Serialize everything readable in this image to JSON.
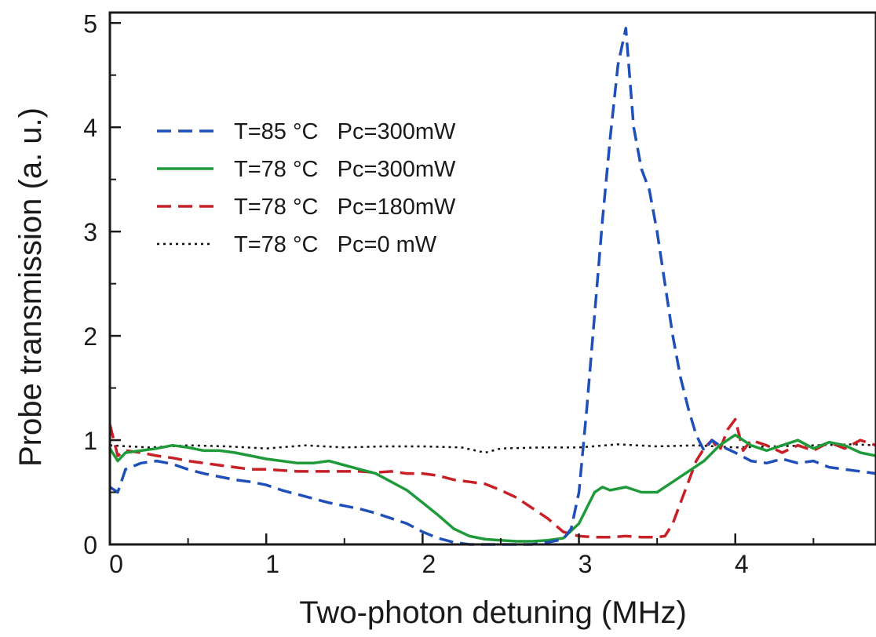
{
  "chart_data": {
    "type": "line",
    "title": "",
    "xlabel": "Two-photon detuning  (MHz)",
    "ylabel": "Probe transmission (a. u.)",
    "xlim": [
      0,
      4.9
    ],
    "ylim": [
      0,
      5.1
    ],
    "x_ticks": [
      "0",
      "1",
      "2",
      "3",
      "4"
    ],
    "y_ticks": [
      "0",
      "1",
      "2",
      "3",
      "4",
      "5"
    ],
    "grid": false,
    "legend_position": "upper-left",
    "series": [
      {
        "name": "T=85 °C   Pc=300mW",
        "color": "#1f4fb8",
        "dash": "dashed",
        "x": [
          0,
          0.05,
          0.1,
          0.2,
          0.3,
          0.4,
          0.5,
          0.6,
          0.7,
          0.8,
          0.9,
          1.0,
          1.1,
          1.2,
          1.3,
          1.4,
          1.5,
          1.6,
          1.7,
          1.8,
          1.9,
          2.0,
          2.1,
          2.2,
          2.3,
          2.4,
          2.5,
          2.6,
          2.7,
          2.8,
          2.9,
          2.95,
          3.0,
          3.05,
          3.1,
          3.15,
          3.2,
          3.25,
          3.3,
          3.35,
          3.4,
          3.45,
          3.5,
          3.55,
          3.6,
          3.65,
          3.7,
          3.75,
          3.8,
          3.85,
          3.9,
          4.0,
          4.1,
          4.2,
          4.3,
          4.4,
          4.5,
          4.6,
          4.7,
          4.8,
          4.9
        ],
        "y": [
          0.55,
          0.5,
          0.72,
          0.78,
          0.8,
          0.77,
          0.72,
          0.68,
          0.65,
          0.62,
          0.6,
          0.57,
          0.52,
          0.48,
          0.44,
          0.4,
          0.37,
          0.34,
          0.3,
          0.25,
          0.2,
          0.12,
          0.06,
          0.02,
          0.0,
          0.0,
          0.0,
          0.0,
          0.0,
          0.02,
          0.05,
          0.15,
          0.5,
          1.3,
          2.2,
          3.1,
          3.9,
          4.6,
          4.95,
          4.0,
          3.6,
          3.4,
          3.0,
          2.5,
          2.0,
          1.6,
          1.3,
          1.05,
          0.9,
          1.0,
          0.95,
          0.88,
          0.8,
          0.78,
          0.82,
          0.78,
          0.8,
          0.74,
          0.72,
          0.7,
          0.68
        ]
      },
      {
        "name": "T=78 °C   Pc=300mW",
        "color": "#1e9a3a",
        "dash": "solid",
        "x": [
          0,
          0.05,
          0.1,
          0.2,
          0.3,
          0.4,
          0.5,
          0.6,
          0.7,
          0.8,
          0.9,
          1.0,
          1.1,
          1.2,
          1.3,
          1.4,
          1.5,
          1.6,
          1.7,
          1.8,
          1.9,
          2.0,
          2.1,
          2.2,
          2.3,
          2.4,
          2.5,
          2.6,
          2.7,
          2.8,
          2.9,
          3.0,
          3.05,
          3.1,
          3.15,
          3.2,
          3.3,
          3.4,
          3.5,
          3.6,
          3.7,
          3.8,
          3.9,
          4.0,
          4.1,
          4.2,
          4.3,
          4.4,
          4.5,
          4.6,
          4.7,
          4.8,
          4.9
        ],
        "y": [
          0.92,
          0.8,
          0.88,
          0.9,
          0.92,
          0.95,
          0.93,
          0.9,
          0.9,
          0.88,
          0.85,
          0.82,
          0.8,
          0.78,
          0.78,
          0.8,
          0.76,
          0.72,
          0.68,
          0.6,
          0.52,
          0.4,
          0.28,
          0.15,
          0.08,
          0.05,
          0.04,
          0.03,
          0.03,
          0.04,
          0.06,
          0.2,
          0.35,
          0.5,
          0.55,
          0.52,
          0.55,
          0.5,
          0.5,
          0.6,
          0.7,
          0.8,
          0.95,
          1.05,
          0.95,
          0.9,
          0.95,
          1.0,
          0.92,
          0.98,
          0.95,
          0.88,
          0.85
        ]
      },
      {
        "name": "T=78 °C   Pc=180mW",
        "color": "#c72027",
        "dash": "dashed",
        "x": [
          0,
          0.05,
          0.1,
          0.2,
          0.3,
          0.4,
          0.5,
          0.6,
          0.7,
          0.8,
          0.9,
          1.0,
          1.1,
          1.2,
          1.3,
          1.4,
          1.5,
          1.6,
          1.7,
          1.8,
          1.9,
          2.0,
          2.1,
          2.2,
          2.3,
          2.4,
          2.5,
          2.6,
          2.7,
          2.8,
          2.9,
          3.0,
          3.1,
          3.2,
          3.3,
          3.4,
          3.5,
          3.55,
          3.6,
          3.65,
          3.7,
          3.75,
          3.8,
          3.85,
          3.9,
          3.95,
          4.0,
          4.05,
          4.1,
          4.2,
          4.3,
          4.4,
          4.5,
          4.6,
          4.7,
          4.8,
          4.9
        ],
        "y": [
          1.15,
          0.85,
          0.9,
          0.88,
          0.85,
          0.83,
          0.8,
          0.78,
          0.76,
          0.74,
          0.72,
          0.72,
          0.71,
          0.7,
          0.7,
          0.7,
          0.7,
          0.7,
          0.69,
          0.7,
          0.68,
          0.68,
          0.66,
          0.62,
          0.6,
          0.58,
          0.52,
          0.45,
          0.35,
          0.25,
          0.12,
          0.08,
          0.07,
          0.07,
          0.08,
          0.07,
          0.07,
          0.08,
          0.2,
          0.4,
          0.6,
          0.8,
          0.92,
          1.0,
          0.9,
          1.1,
          1.2,
          0.9,
          1.0,
          0.95,
          0.88,
          0.95,
          0.9,
          0.98,
          0.92,
          1.0,
          0.95
        ]
      },
      {
        "name": "T=78 °C   Pc=0 mW",
        "color": "#111111",
        "dash": "dotted",
        "x": [
          0,
          0.25,
          0.5,
          0.75,
          1.0,
          1.25,
          1.5,
          1.75,
          2.0,
          2.25,
          2.4,
          2.5,
          2.75,
          3.0,
          3.25,
          3.5,
          3.75,
          4.0,
          4.25,
          4.5,
          4.75,
          4.9
        ],
        "y": [
          0.95,
          0.93,
          0.95,
          0.94,
          0.92,
          0.95,
          0.93,
          0.94,
          0.94,
          0.93,
          0.88,
          0.92,
          0.93,
          0.93,
          0.96,
          0.94,
          0.95,
          0.93,
          0.94,
          0.95,
          0.96,
          0.95
        ]
      }
    ]
  }
}
